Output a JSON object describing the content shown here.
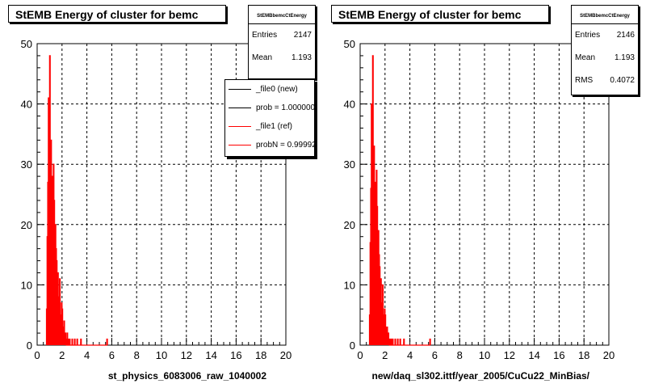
{
  "left_panel": {
    "title": "StEMB Energy of cluster for bemc",
    "stats": {
      "name": "StEMBbemcCtEnergy",
      "rows": [
        {
          "label": "Entries",
          "value": "2147"
        },
        {
          "label": "Mean",
          "value": "1.193"
        }
      ]
    },
    "legend": [
      {
        "label": "_file0 (new)",
        "color": "#000000"
      },
      {
        "label": "prob = 1.000000",
        "color": "#000000"
      },
      {
        "label": "_file1 (ref)",
        "color": "#ff0000"
      },
      {
        "label": "probN = 0.99992",
        "color": "#ff0000"
      }
    ],
    "xlabel": "st_physics_6083006_raw_1040002"
  },
  "right_panel": {
    "title": "StEMB Energy of cluster for bemc",
    "stats": {
      "name": "StEMBbemcCtEnergy",
      "rows": [
        {
          "label": "Entries",
          "value": "2146"
        },
        {
          "label": "Mean",
          "value": "1.193"
        },
        {
          "label": "RMS",
          "value": "0.4072"
        }
      ]
    },
    "xlabel": "new/daq_sl302.ittf/year_2005/CuCu22_MinBias/"
  },
  "footer_text": "",
  "chart_data": [
    {
      "type": "line",
      "title": "StEMB Energy of cluster for bemc",
      "xlabel": "st_physics_6083006_raw_1040002",
      "ylabel": "",
      "xlim": [
        0,
        20
      ],
      "ylim": [
        0,
        50
      ],
      "xticks": [
        "0",
        "2",
        "4",
        "6",
        "8",
        "10",
        "12",
        "14",
        "16",
        "18",
        "20"
      ],
      "yticks": [
        "0",
        "10",
        "20",
        "30",
        "40",
        "50"
      ],
      "grid": true,
      "series": [
        {
          "name": "_file1 (ref)",
          "color": "#ff0000",
          "x": [
            0.75,
            0.8,
            0.85,
            0.9,
            0.95,
            1.0,
            1.05,
            1.1,
            1.15,
            1.2,
            1.25,
            1.3,
            1.35,
            1.4,
            1.45,
            1.5,
            1.55,
            1.6,
            1.65,
            1.7,
            1.75,
            1.8,
            1.85,
            1.9,
            1.95,
            2.0,
            2.05,
            2.1,
            2.15,
            2.2,
            2.25,
            2.3,
            2.35,
            2.4,
            2.5,
            2.6,
            2.7,
            2.8,
            3.0,
            3.2,
            3.5,
            5.6
          ],
          "values": [
            6,
            18,
            27,
            41,
            32,
            48,
            29,
            34,
            22,
            28,
            26,
            30,
            24,
            18,
            20,
            16,
            14,
            10,
            12,
            8,
            5,
            11,
            4,
            5,
            7,
            6,
            3,
            2,
            4,
            2,
            2,
            1,
            0,
            2,
            1,
            1,
            0,
            1,
            1,
            1,
            1,
            1
          ]
        }
      ]
    },
    {
      "type": "line",
      "title": "StEMB Energy of cluster for bemc",
      "xlabel": "new/daq_sl302.ittf/year_2005/CuCu22_MinBias/",
      "ylabel": "",
      "xlim": [
        0,
        20
      ],
      "ylim": [
        0,
        50
      ],
      "xticks": [
        "0",
        "2",
        "4",
        "6",
        "8",
        "10",
        "12",
        "14",
        "16",
        "18",
        "20"
      ],
      "yticks": [
        "0",
        "10",
        "20",
        "30",
        "40",
        "50"
      ],
      "grid": true,
      "series": [
        {
          "name": "",
          "color": "#ff0000",
          "x": [
            0.75,
            0.8,
            0.85,
            0.9,
            0.95,
            1.0,
            1.05,
            1.1,
            1.15,
            1.2,
            1.25,
            1.3,
            1.35,
            1.4,
            1.45,
            1.5,
            1.55,
            1.6,
            1.65,
            1.7,
            1.75,
            1.8,
            1.85,
            1.9,
            1.95,
            2.0,
            2.05,
            2.1,
            2.15,
            2.2,
            2.25,
            2.3,
            2.35,
            2.4,
            2.5,
            2.6,
            2.7,
            2.8,
            3.0,
            3.2,
            3.5,
            5.6
          ],
          "values": [
            5,
            17,
            26,
            40,
            33,
            48,
            30,
            33,
            23,
            27,
            27,
            29,
            23,
            19,
            19,
            15,
            13,
            11,
            11,
            7,
            6,
            10,
            5,
            4,
            6,
            5,
            3,
            2,
            3,
            2,
            2,
            1,
            0,
            1,
            1,
            1,
            0,
            1,
            1,
            1,
            1,
            1
          ]
        }
      ]
    }
  ]
}
